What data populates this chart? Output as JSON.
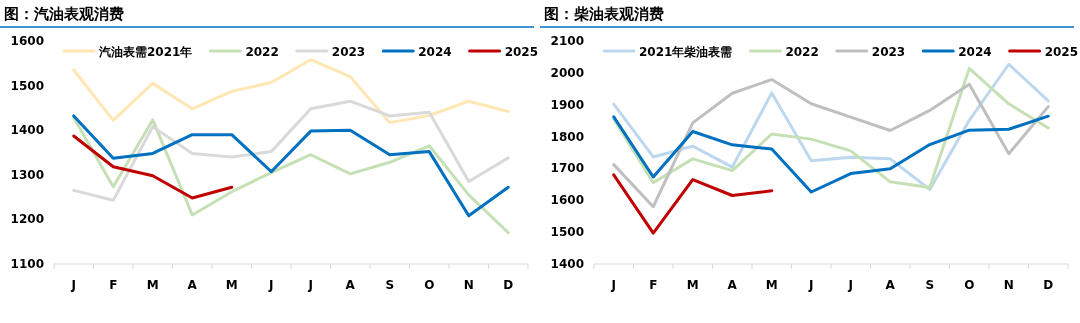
{
  "chart_data": [
    {
      "type": "line",
      "title": "图：汽油表观消费",
      "categories": [
        "J",
        "F",
        "M",
        "A",
        "M",
        "J",
        "J",
        "A",
        "S",
        "O",
        "N",
        "D"
      ],
      "ylim": [
        1100,
        1600
      ],
      "yticks": [
        1100,
        1200,
        1300,
        1400,
        1500,
        1600
      ],
      "legend": "top",
      "grid": false,
      "series": [
        {
          "name": "汽油表需2021年",
          "color": "#ffe6b3",
          "values": [
            1535,
            1422,
            1505,
            1448,
            1487,
            1507,
            1558,
            1520,
            1417,
            1433,
            1465,
            1442
          ]
        },
        {
          "name": "2022",
          "color": "#c5e0b4",
          "values": [
            1428,
            1273,
            1423,
            1210,
            1262,
            1305,
            1345,
            1302,
            1328,
            1365,
            1255,
            1170
          ]
        },
        {
          "name": "2023",
          "color": "#d9d9d9",
          "values": [
            1265,
            1243,
            1408,
            1348,
            1340,
            1352,
            1448,
            1465,
            1432,
            1440,
            1285,
            1338
          ]
        },
        {
          "name": "2024",
          "color": "#0070c0",
          "values": [
            1432,
            1337,
            1348,
            1390,
            1390,
            1307,
            1398,
            1400,
            1345,
            1352,
            1208,
            1272
          ]
        },
        {
          "name": "2025",
          "color": "#c00000",
          "values": [
            1387,
            1318,
            1298,
            1248,
            1272,
            null,
            null,
            null,
            null,
            null,
            null,
            null
          ]
        }
      ]
    },
    {
      "type": "line",
      "title": "图：柴油表观消费",
      "categories": [
        "J",
        "F",
        "M",
        "A",
        "M",
        "J",
        "J",
        "A",
        "S",
        "O",
        "N",
        "D"
      ],
      "ylim": [
        1400,
        2100
      ],
      "yticks": [
        1400,
        1500,
        1600,
        1700,
        1800,
        1900,
        2000,
        2100
      ],
      "legend": "top",
      "grid": false,
      "series": [
        {
          "name": "2021年柴油表需",
          "color": "#bdd7ee",
          "values": [
            1902,
            1736,
            1770,
            1704,
            1937,
            1724,
            1735,
            1730,
            1634,
            1851,
            2027,
            1912
          ]
        },
        {
          "name": "2022",
          "color": "#c5e0b4",
          "values": [
            1855,
            1655,
            1730,
            1693,
            1808,
            1792,
            1755,
            1658,
            1640,
            2014,
            1903,
            1827
          ]
        },
        {
          "name": "2023",
          "color": "#bfbfbf",
          "values": [
            1712,
            1580,
            1843,
            1936,
            1979,
            1903,
            1861,
            1819,
            1882,
            1964,
            1746,
            1894
          ]
        },
        {
          "name": "2024",
          "color": "#0070c0",
          "values": [
            1862,
            1673,
            1816,
            1774,
            1761,
            1626,
            1684,
            1699,
            1775,
            1820,
            1823,
            1864
          ]
        },
        {
          "name": "2025",
          "color": "#c00000",
          "values": [
            1680,
            1497,
            1665,
            1615,
            1630,
            null,
            null,
            null,
            null,
            null,
            null,
            null
          ]
        }
      ]
    }
  ]
}
